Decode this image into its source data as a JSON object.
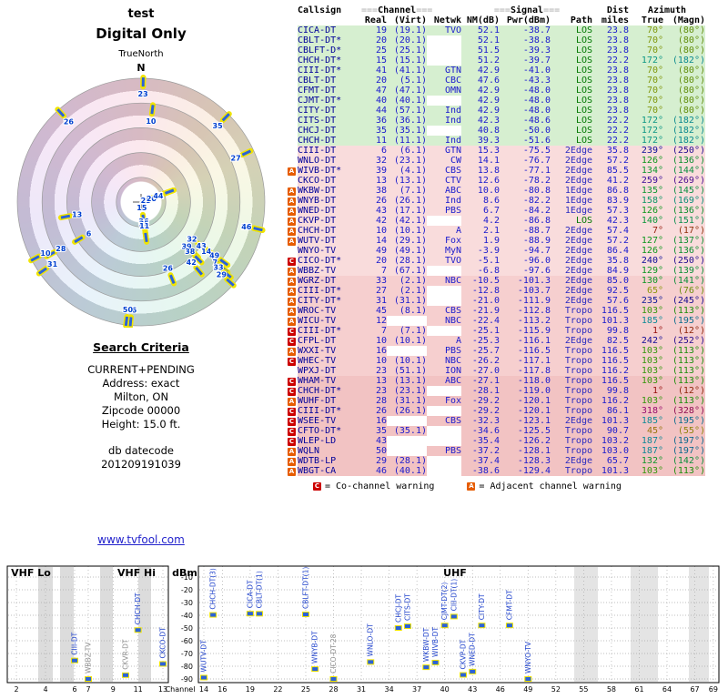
{
  "header": {
    "title": "test",
    "subtitle": "Digital Only",
    "true_north": "TrueNorth",
    "north": "N"
  },
  "search": {
    "heading": "Search Criteria",
    "lines": [
      "CURRENT+PENDING",
      "Address: exact",
      "Milton, ON",
      "Zipcode 00000",
      "Height: 15.0 ft."
    ],
    "datecode_label": "db datecode",
    "datecode": "201209191039"
  },
  "link": {
    "text": "www.tvfool.com"
  },
  "colors": {
    "row_strong": "#d6efd0",
    "row_weak1": "#f9dcdc",
    "row_weak2": "#f6cfcf",
    "row_weak3": "#f2c3c3",
    "path_los": "#007700",
    "path_other": "#2a2ac0",
    "callsign": "#000099",
    "value": "#1a1acd",
    "c_warn": "#cc0000",
    "a_warn": "#e65c00",
    "marker": "#2b62d9",
    "marker_outline": "#f0e400",
    "link": "#2222cc"
  },
  "table": {
    "h": {
      "callsign": "Callsign",
      "channel": "Channel",
      "signal": "Signal",
      "dist": "Dist",
      "miles": "miles",
      "real": "Real",
      "virt": "(Virt)",
      "netwk": "Netwk",
      "nm": "NM(dB)",
      "pwr": "Pwr(dBm)",
      "path": "Path",
      "azimuth": "Azimuth",
      "true": "True",
      "magn": "(Magn)",
      "deco": "==="
    },
    "rows": [
      {
        "cs": "CICA-DT",
        "real": 19,
        "virt": "(19.1)",
        "net": "TVO",
        "nm": 52.1,
        "pwr": -38.7,
        "path": "LOS",
        "dist": 23.8,
        "az": 70,
        "magn": 80,
        "warn": ""
      },
      {
        "cs": "CBLT-DT*",
        "real": 20,
        "virt": "(20.1)",
        "net": "",
        "nm": 52.1,
        "pwr": -38.8,
        "path": "LOS",
        "dist": 23.8,
        "az": 70,
        "magn": 80,
        "warn": ""
      },
      {
        "cs": "CBLFT-D*",
        "real": 25,
        "virt": "(25.1)",
        "net": "",
        "nm": 51.5,
        "pwr": -39.3,
        "path": "LOS",
        "dist": 23.8,
        "az": 70,
        "magn": 80,
        "warn": ""
      },
      {
        "cs": "CHCH-DT*",
        "real": 15,
        "virt": "(15.1)",
        "net": "",
        "nm": 51.2,
        "pwr": -39.7,
        "path": "LOS",
        "dist": 22.2,
        "az": 172,
        "magn": 182,
        "warn": ""
      },
      {
        "cs": "CIII-DT*",
        "real": 41,
        "virt": "(41.1)",
        "net": "GTN",
        "nm": 42.9,
        "pwr": -41.0,
        "path": "LOS",
        "dist": 23.8,
        "az": 70,
        "magn": 80,
        "warn": ""
      },
      {
        "cs": "CBLT-DT",
        "real": 20,
        "virt": "(5.1)",
        "net": "CBC",
        "nm": 47.6,
        "pwr": -43.3,
        "path": "LOS",
        "dist": 23.8,
        "az": 70,
        "magn": 80,
        "warn": ""
      },
      {
        "cs": "CFMT-DT",
        "real": 47,
        "virt": "(47.1)",
        "net": "OMN",
        "nm": 42.9,
        "pwr": -48.0,
        "path": "LOS",
        "dist": 23.8,
        "az": 70,
        "magn": 80,
        "warn": ""
      },
      {
        "cs": "CJMT-DT*",
        "real": 40,
        "virt": "(40.1)",
        "net": "",
        "nm": 42.9,
        "pwr": -48.0,
        "path": "LOS",
        "dist": 23.8,
        "az": 70,
        "magn": 80,
        "warn": ""
      },
      {
        "cs": "CITY-DT",
        "real": 44,
        "virt": "(57.1)",
        "net": "Ind",
        "nm": 42.9,
        "pwr": -48.0,
        "path": "LOS",
        "dist": 23.8,
        "az": 70,
        "magn": 80,
        "warn": ""
      },
      {
        "cs": "CITS-DT",
        "real": 36,
        "virt": "(36.1)",
        "net": "Ind",
        "nm": 42.3,
        "pwr": -48.6,
        "path": "LOS",
        "dist": 22.2,
        "az": 172,
        "magn": 182,
        "warn": ""
      },
      {
        "cs": "CHCJ-DT",
        "real": 35,
        "virt": "(35.1)",
        "net": "",
        "nm": 40.8,
        "pwr": -50.0,
        "path": "LOS",
        "dist": 22.2,
        "az": 172,
        "magn": 182,
        "warn": ""
      },
      {
        "cs": "CHCH-DT",
        "real": 11,
        "virt": "(11.1)",
        "net": "Ind",
        "nm": 39.3,
        "pwr": -51.6,
        "path": "LOS",
        "dist": 22.2,
        "az": 172,
        "magn": 182,
        "warn": ""
      },
      {
        "cs": "CIII-DT",
        "real": 6,
        "virt": "(6.1)",
        "net": "GTN",
        "nm": 15.3,
        "pwr": -75.5,
        "path": "2Edge",
        "dist": 35.8,
        "az": 239,
        "magn": 250,
        "warn": ""
      },
      {
        "cs": "WNLO-DT",
        "real": 32,
        "virt": "(23.1)",
        "net": "CW",
        "nm": 14.1,
        "pwr": -76.7,
        "path": "2Edge",
        "dist": 57.2,
        "az": 126,
        "magn": 136,
        "warn": ""
      },
      {
        "cs": "WIVB-DT*",
        "real": 39,
        "virt": "(4.1)",
        "net": "CBS",
        "nm": 13.8,
        "pwr": -77.1,
        "path": "2Edge",
        "dist": 85.5,
        "az": 134,
        "magn": 144,
        "warn": "A"
      },
      {
        "cs": "CKCO-DT",
        "real": 13,
        "virt": "(13.1)",
        "net": "CTV",
        "nm": 12.6,
        "pwr": -78.2,
        "path": "2Edge",
        "dist": 41.2,
        "az": 259,
        "magn": 269,
        "warn": ""
      },
      {
        "cs": "WKBW-DT",
        "real": 38,
        "virt": "(7.1)",
        "net": "ABC",
        "nm": 10.0,
        "pwr": -80.8,
        "path": "1Edge",
        "dist": 86.8,
        "az": 135,
        "magn": 145,
        "warn": "A"
      },
      {
        "cs": "WNYB-DT",
        "real": 26,
        "virt": "(26.1)",
        "net": "Ind",
        "nm": 8.6,
        "pwr": -82.2,
        "path": "1Edge",
        "dist": 83.9,
        "az": 158,
        "magn": 169,
        "warn": "A"
      },
      {
        "cs": "WNED-DT",
        "real": 43,
        "virt": "(17.1)",
        "net": "PBS",
        "nm": 6.7,
        "pwr": -84.2,
        "path": "1Edge",
        "dist": 57.3,
        "az": 126,
        "magn": 136,
        "warn": "A"
      },
      {
        "cs": "CKVP-DT",
        "real": 42,
        "virt": "(42.1)",
        "net": "",
        "nm": 4.2,
        "pwr": -86.8,
        "path": "LOS",
        "dist": 42.3,
        "az": 140,
        "magn": 151,
        "warn": "A"
      },
      {
        "cs": "CHCH-DT",
        "real": 10,
        "virt": "(10.1)",
        "net": "A",
        "nm": 2.1,
        "pwr": -88.7,
        "path": "2Edge",
        "dist": 57.4,
        "az": 7,
        "magn": 17,
        "warn": "A"
      },
      {
        "cs": "WUTV-DT",
        "real": 14,
        "virt": "(29.1)",
        "net": "Fox",
        "nm": 1.9,
        "pwr": -88.9,
        "path": "2Edge",
        "dist": 57.2,
        "az": 127,
        "magn": 137,
        "warn": "A"
      },
      {
        "cs": "WNYO-TV",
        "real": 49,
        "virt": "(49.1)",
        "net": "MyN",
        "nm": -3.9,
        "pwr": -94.7,
        "path": "2Edge",
        "dist": 86.4,
        "az": 126,
        "magn": 136,
        "warn": ""
      },
      {
        "cs": "CICO-DT*",
        "real": 20,
        "virt": "(28.1)",
        "net": "TVO",
        "nm": -5.1,
        "pwr": -96.0,
        "path": "2Edge",
        "dist": 35.8,
        "az": 240,
        "magn": 250,
        "warn": "C",
        "lbl": "28"
      },
      {
        "cs": "WBBZ-TV",
        "real": 7,
        "virt": "(67.1)",
        "net": "",
        "nm": -6.8,
        "pwr": -97.6,
        "path": "2Edge",
        "dist": 84.9,
        "az": 129,
        "magn": 139,
        "warn": "A"
      },
      {
        "cs": "WGRZ-DT",
        "real": 33,
        "virt": "(2.1)",
        "net": "NBC",
        "nm": -10.5,
        "pwr": -101.3,
        "path": "2Edge",
        "dist": 85.0,
        "az": 130,
        "magn": 141,
        "warn": "A"
      },
      {
        "cs": "CIII-DT*",
        "real": 27,
        "virt": "(2.1)",
        "net": "",
        "nm": -12.8,
        "pwr": -103.7,
        "path": "2Edge",
        "dist": 92.5,
        "az": 65,
        "magn": 76,
        "warn": "A"
      },
      {
        "cs": "CITY-DT*",
        "real": 31,
        "virt": "(31.1)",
        "net": "",
        "nm": -21.0,
        "pwr": -111.9,
        "path": "2Edge",
        "dist": 57.6,
        "az": 235,
        "magn": 245,
        "warn": "A"
      },
      {
        "cs": "WROC-TV",
        "real": 45,
        "virt": "(8.1)",
        "net": "CBS",
        "nm": -21.9,
        "pwr": -112.8,
        "path": "Tropo",
        "dist": 116.5,
        "az": 103,
        "magn": 113,
        "warn": "A"
      },
      {
        "cs": "WICU-TV",
        "real": 12,
        "virt": "",
        "net": "NBC",
        "nm": -22.4,
        "pwr": -113.2,
        "path": "Tropo",
        "dist": 101.3,
        "az": 185,
        "magn": 195,
        "warn": "A"
      },
      {
        "cs": "CIII-DT*",
        "real": 7,
        "virt": "(7.1)",
        "net": "",
        "nm": -25.1,
        "pwr": -115.9,
        "path": "Tropo",
        "dist": 99.8,
        "az": 1,
        "magn": 12,
        "warn": "C"
      },
      {
        "cs": "CFPL-DT",
        "real": 10,
        "virt": "(10.1)",
        "net": "A",
        "nm": -25.3,
        "pwr": -116.1,
        "path": "2Edge",
        "dist": 82.5,
        "az": 242,
        "magn": 252,
        "warn": "C"
      },
      {
        "cs": "WXXI-TV",
        "real": 16,
        "virt": "",
        "net": "PBS",
        "nm": -25.7,
        "pwr": -116.5,
        "path": "Tropo",
        "dist": 116.5,
        "az": 103,
        "magn": 113,
        "warn": "A"
      },
      {
        "cs": "WHEC-TV",
        "real": 10,
        "virt": "(10.1)",
        "net": "NBC",
        "nm": -26.2,
        "pwr": -117.1,
        "path": "Tropo",
        "dist": 116.5,
        "az": 103,
        "magn": 113,
        "warn": "C"
      },
      {
        "cs": "WPXJ-DT",
        "real": 23,
        "virt": "(51.1)",
        "net": "ION",
        "nm": -27.0,
        "pwr": -117.8,
        "path": "Tropo",
        "dist": 116.2,
        "az": 103,
        "magn": 113,
        "warn": ""
      },
      {
        "cs": "WHAM-TV",
        "real": 13,
        "virt": "(13.1)",
        "net": "ABC",
        "nm": -27.1,
        "pwr": -118.0,
        "path": "Tropo",
        "dist": 116.5,
        "az": 103,
        "magn": 113,
        "warn": "C"
      },
      {
        "cs": "CHCH-DT*",
        "real": 23,
        "virt": "(23.1)",
        "net": "",
        "nm": -28.1,
        "pwr": -119.0,
        "path": "Tropo",
        "dist": 99.8,
        "az": 1,
        "magn": 12,
        "warn": "C"
      },
      {
        "cs": "WUHF-DT",
        "real": 28,
        "virt": "(31.1)",
        "net": "Fox",
        "nm": -29.2,
        "pwr": -120.1,
        "path": "Tropo",
        "dist": 116.2,
        "az": 103,
        "magn": 113,
        "warn": "A"
      },
      {
        "cs": "CIII-DT*",
        "real": 26,
        "virt": "(26.1)",
        "net": "",
        "nm": -29.2,
        "pwr": -120.1,
        "path": "Tropo",
        "dist": 86.1,
        "az": 318,
        "magn": 328,
        "warn": "C"
      },
      {
        "cs": "WSEE-TV",
        "real": 16,
        "virt": "",
        "net": "CBS",
        "nm": -32.3,
        "pwr": -123.1,
        "path": "2Edge",
        "dist": 101.3,
        "az": 185,
        "magn": 195,
        "warn": "C"
      },
      {
        "cs": "CFTO-DT*",
        "real": 35,
        "virt": "(35.1)",
        "net": "",
        "nm": -34.6,
        "pwr": -125.5,
        "path": "Tropo",
        "dist": 90.7,
        "az": 45,
        "magn": 55,
        "warn": "C"
      },
      {
        "cs": "WLEP-LD",
        "real": 43,
        "virt": "",
        "net": "",
        "nm": -35.4,
        "pwr": -126.2,
        "path": "Tropo",
        "dist": 103.2,
        "az": 187,
        "magn": 197,
        "warn": "C"
      },
      {
        "cs": "WQLN",
        "real": 50,
        "virt": "",
        "net": "PBS",
        "nm": -37.2,
        "pwr": -128.1,
        "path": "Tropo",
        "dist": 103.0,
        "az": 187,
        "magn": 197,
        "warn": "A"
      },
      {
        "cs": "WDTB-LP",
        "real": 29,
        "virt": "(28.1)",
        "net": "",
        "nm": -37.4,
        "pwr": -128.3,
        "path": "2Edge",
        "dist": 65.7,
        "az": 132,
        "magn": 142,
        "warn": "A"
      },
      {
        "cs": "WBGT-CA",
        "real": 46,
        "virt": "(40.1)",
        "net": "",
        "nm": -38.6,
        "pwr": -129.4,
        "path": "Tropo",
        "dist": 101.3,
        "az": 103,
        "magn": 113,
        "warn": "A"
      }
    ],
    "legend": {
      "c_letter": "C",
      "c_text": "= Co-channel warning",
      "a_letter": "A",
      "a_text": "= Adjacent channel warning"
    }
  },
  "chart_data": [
    {
      "type": "scatter",
      "title": "azimuth radar plot",
      "polar": true,
      "north_label": "N",
      "orientation_label": "TrueNorth",
      "radius_metric": "NM(dB), stronger toward center",
      "rings": 5,
      "points": [
        [
          "19",
          70,
          52.1
        ],
        [
          "20",
          70,
          52.1
        ],
        [
          "25",
          70,
          51.5
        ],
        [
          "15",
          172,
          51.2
        ],
        [
          "41",
          70,
          42.9
        ],
        [
          "20",
          70,
          47.6
        ],
        [
          "47",
          70,
          42.9
        ],
        [
          "40",
          70,
          42.9
        ],
        [
          "44",
          70,
          42.9
        ],
        [
          "36",
          172,
          42.3
        ],
        [
          "35",
          172,
          40.8
        ],
        [
          "11",
          172,
          39.3
        ],
        [
          "6",
          239,
          15.3
        ],
        [
          "32",
          126,
          14.1
        ],
        [
          "39",
          134,
          13.8
        ],
        [
          "13",
          259,
          12.6
        ],
        [
          "38",
          135,
          10.0
        ],
        [
          "26",
          158,
          8.6
        ],
        [
          "43",
          126,
          6.7
        ],
        [
          "42",
          140,
          4.2
        ],
        [
          "10",
          7,
          2.1
        ],
        [
          "14",
          127,
          1.9
        ],
        [
          "49",
          126,
          -3.9
        ],
        [
          "28",
          240,
          -5.1
        ],
        [
          "7",
          129,
          -6.8
        ],
        [
          "33",
          130,
          -10.5
        ],
        [
          "27",
          65,
          -12.8
        ],
        [
          "31",
          235,
          -21.0
        ],
        [
          "45",
          103,
          -21.9
        ],
        [
          "12",
          185,
          -22.4
        ],
        [
          "7",
          1,
          -25.1
        ],
        [
          "10",
          242,
          -25.3
        ],
        [
          "16",
          103,
          -25.7
        ],
        [
          "10",
          103,
          -26.2
        ],
        [
          "23",
          103,
          -27.0
        ],
        [
          "13",
          103,
          -27.1
        ],
        [
          "23",
          1,
          -28.1
        ],
        [
          "28",
          103,
          -29.2
        ],
        [
          "26",
          318,
          -29.2
        ],
        [
          "16",
          185,
          -32.3
        ],
        [
          "35",
          45,
          -34.6
        ],
        [
          "43",
          187,
          -35.4
        ],
        [
          "50",
          187,
          -37.2
        ],
        [
          "29",
          132,
          -37.4
        ],
        [
          "46",
          103,
          -38.6
        ]
      ]
    },
    {
      "type": "scatter",
      "title": "channel power spectrum",
      "xlabel": "Channel",
      "ylabel": "dBm",
      "ylim": [
        -90,
        -10
      ],
      "band_labels": {
        "lo": "VHF Lo",
        "hi": "VHF Hi",
        "uhf": "UHF"
      },
      "dbm_ticks": [
        -10,
        -20,
        -30,
        -40,
        -50,
        -60,
        -70,
        -80,
        -90
      ],
      "lo_ticks": [
        2,
        4,
        6
      ],
      "hi_ticks": [
        7,
        9,
        11,
        13
      ],
      "uhf_ticks": [
        14,
        16,
        19,
        22,
        25,
        28,
        31,
        34,
        37,
        40,
        43,
        46,
        49,
        52,
        55,
        58,
        61,
        64,
        67,
        69
      ],
      "stations": [
        {
          "label": "CIII-DT",
          "ch": 6,
          "dbm": -75.5,
          "gray": false
        },
        {
          "label": "WBBZ-TV",
          "ch": 7,
          "dbm": -97.6,
          "gray": true
        },
        {
          "label": "CKVR-DT",
          "ch": 10,
          "dbm": -87.0,
          "gray": true
        },
        {
          "label": "CHCH-DT",
          "ch": 11,
          "dbm": -51.6,
          "gray": false
        },
        {
          "label": "CKCO-DT",
          "ch": 13,
          "dbm": -78.2,
          "gray": false
        },
        {
          "label": "WUTV-DT",
          "ch": 14,
          "dbm": -88.9,
          "gray": false
        },
        {
          "label": "CHCH-DT(3)",
          "ch": 15,
          "dbm": -39.7,
          "gray": false
        },
        {
          "label": "CICA-DT",
          "ch": 19,
          "dbm": -38.7,
          "gray": false
        },
        {
          "label": "CBLT-DT(1)",
          "ch": 20,
          "dbm": -38.8,
          "gray": false
        },
        {
          "label": "CBLFT-DT(1)",
          "ch": 25,
          "dbm": -39.3,
          "gray": false
        },
        {
          "label": "WNYB-DT",
          "ch": 26,
          "dbm": -82.2,
          "gray": false
        },
        {
          "label": "CICO-DT-28",
          "ch": 28,
          "dbm": -96.0,
          "gray": true
        },
        {
          "label": "WNLO-DT",
          "ch": 32,
          "dbm": -76.7,
          "gray": false
        },
        {
          "label": "CHCJ-DT",
          "ch": 35,
          "dbm": -50.0,
          "gray": false
        },
        {
          "label": "CITS-DT",
          "ch": 36,
          "dbm": -48.6,
          "gray": false
        },
        {
          "label": "WKBW-DT",
          "ch": 38,
          "dbm": -80.8,
          "gray": false
        },
        {
          "label": "WIVB-DT",
          "ch": 39,
          "dbm": -77.1,
          "gray": false
        },
        {
          "label": "CJMT-DT(2)",
          "ch": 40,
          "dbm": -48.0,
          "gray": false
        },
        {
          "label": "CIII-DT(1)",
          "ch": 41,
          "dbm": -41.0,
          "gray": false
        },
        {
          "label": "CKVP-DT",
          "ch": 42,
          "dbm": -86.8,
          "gray": false
        },
        {
          "label": "WNED-DT",
          "ch": 43,
          "dbm": -84.2,
          "gray": false
        },
        {
          "label": "CITY-DT",
          "ch": 44,
          "dbm": -48.0,
          "gray": false
        },
        {
          "label": "CFMT-DT",
          "ch": 47,
          "dbm": -48.0,
          "gray": false
        },
        {
          "label": "WNYO-TV",
          "ch": 49,
          "dbm": -94.7,
          "gray": false
        }
      ]
    }
  ]
}
